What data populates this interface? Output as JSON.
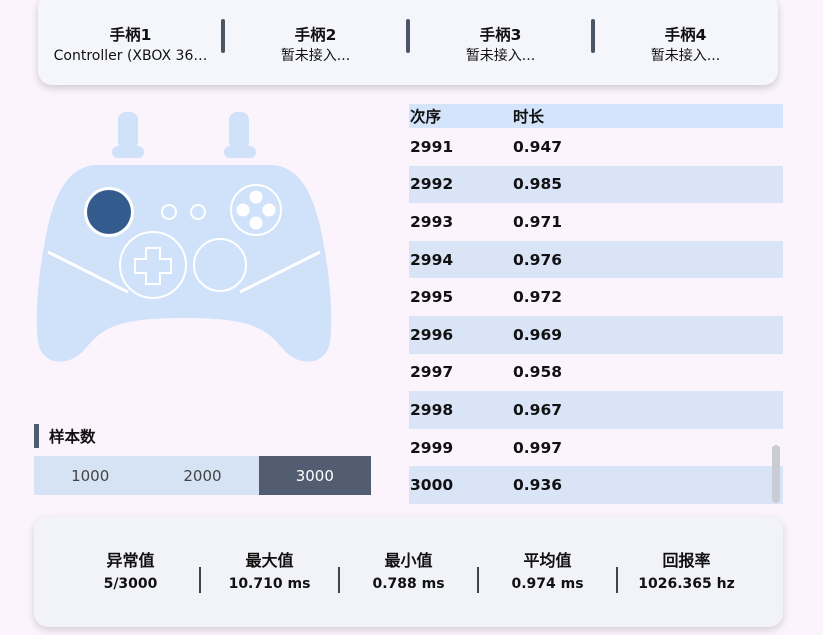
{
  "tabs": [
    {
      "title": "手柄1",
      "status": "Controller (XBOX 36…"
    },
    {
      "title": "手柄2",
      "status": "暂未接入..."
    },
    {
      "title": "手柄3",
      "status": "暂未接入..."
    },
    {
      "title": "手柄4",
      "status": "暂未接入..."
    }
  ],
  "samples": {
    "title": "样本数",
    "options": [
      "1000",
      "2000",
      "3000"
    ],
    "selected": "3000"
  },
  "table": {
    "headers": [
      "次序",
      "时长"
    ],
    "rows": [
      [
        "2991",
        "0.947"
      ],
      [
        "2992",
        "0.985"
      ],
      [
        "2993",
        "0.971"
      ],
      [
        "2994",
        "0.976"
      ],
      [
        "2995",
        "0.972"
      ],
      [
        "2996",
        "0.969"
      ],
      [
        "2997",
        "0.958"
      ],
      [
        "2998",
        "0.967"
      ],
      [
        "2999",
        "0.997"
      ],
      [
        "3000",
        "0.936"
      ]
    ]
  },
  "stats": [
    {
      "label": "异常值",
      "value": "5/3000"
    },
    {
      "label": "最大值",
      "value": "10.710 ms"
    },
    {
      "label": "最小值",
      "value": "0.788 ms"
    },
    {
      "label": "平均值",
      "value": "0.974 ms"
    },
    {
      "label": "回报率",
      "value": "1026.365 hz"
    }
  ],
  "colors": {
    "background": "#fcf4fc",
    "controller_body": "#cfe2fa",
    "active_stick": "#335b8e",
    "selected_segment": "#525d72",
    "row_alt": "#d9e4f7"
  }
}
